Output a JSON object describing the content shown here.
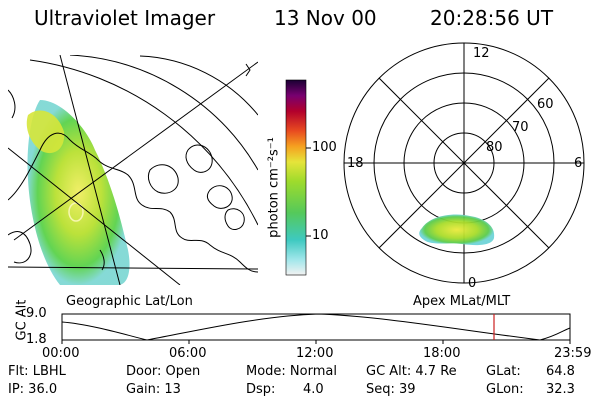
{
  "header": {
    "instrument": "Ultraviolet Imager",
    "date": "13 Nov 00",
    "time": "20:28:56 UT"
  },
  "colorbar": {
    "label": "photon cm⁻²s⁻¹",
    "ticks": [
      "100",
      "10"
    ]
  },
  "polar_plot": {
    "mlt_labels": [
      "12",
      "18",
      "6",
      "0"
    ],
    "mlat_labels": [
      "60",
      "70",
      "80"
    ]
  },
  "left_panel_title": "Geographic Lat/Lon",
  "right_panel_title": "Apex MLat/MLT",
  "gc_alt_plot": {
    "ylabel": "GC Alt",
    "ymax": "9.0",
    "ymin": "1.8",
    "x_ticks": [
      "00:00",
      "06:00",
      "12:00",
      "18:00",
      "23:59"
    ]
  },
  "info": {
    "flt": "Flt: LBHL",
    "ip": "IP: 36.0",
    "door": "Door: Open",
    "gain": "Gain: 13",
    "mode": "Mode: Normal",
    "dsp": "Dsp:",
    "dsp_val": "4.0",
    "gc_alt": "GC Alt: 4.7 Re",
    "seq": "Seq: 39",
    "glat": "GLat:",
    "glat_val": "64.8",
    "glon": "GLon:",
    "glon_val": "32.3"
  }
}
